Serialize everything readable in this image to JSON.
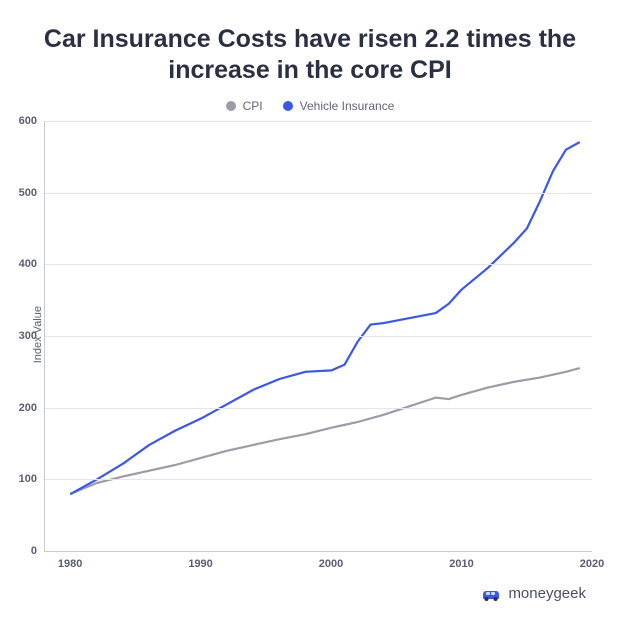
{
  "title": "Car Insurance Costs have risen 2.2 times the increase in the core CPI",
  "ylabel": "Index Value",
  "legend": {
    "a": {
      "label": "CPI",
      "color": "#9a9da7"
    },
    "b": {
      "label": "Vehicle Insurance",
      "color": "#3b57e8"
    }
  },
  "chart": {
    "type": "line",
    "background_color": "#ffffff",
    "grid_color": "#e4e6ec",
    "axis_color": "#c8cad2",
    "tick_color": "#5a5e70",
    "tick_fontsize": 11,
    "line_width": 2.2,
    "xlim": [
      1978,
      2020
    ],
    "ylim": [
      0,
      600
    ],
    "yticks": [
      0,
      100,
      200,
      300,
      400,
      500,
      600
    ],
    "xticks": [
      1980,
      1990,
      2000,
      2010,
      2020
    ],
    "series": {
      "cpi": {
        "color": "#9a9da7",
        "points": [
          [
            1980,
            80
          ],
          [
            1982,
            95
          ],
          [
            1984,
            104
          ],
          [
            1986,
            112
          ],
          [
            1988,
            120
          ],
          [
            1990,
            130
          ],
          [
            1992,
            140
          ],
          [
            1994,
            148
          ],
          [
            1996,
            156
          ],
          [
            1998,
            163
          ],
          [
            2000,
            172
          ],
          [
            2002,
            180
          ],
          [
            2004,
            190
          ],
          [
            2006,
            202
          ],
          [
            2008,
            214
          ],
          [
            2009,
            212
          ],
          [
            2010,
            218
          ],
          [
            2012,
            228
          ],
          [
            2014,
            236
          ],
          [
            2016,
            242
          ],
          [
            2018,
            250
          ],
          [
            2019,
            255
          ]
        ]
      },
      "vehicle": {
        "color": "#3b57e8",
        "points": [
          [
            1980,
            80
          ],
          [
            1982,
            100
          ],
          [
            1984,
            122
          ],
          [
            1986,
            148
          ],
          [
            1988,
            168
          ],
          [
            1990,
            185
          ],
          [
            1992,
            205
          ],
          [
            1994,
            225
          ],
          [
            1996,
            240
          ],
          [
            1998,
            250
          ],
          [
            2000,
            252
          ],
          [
            2001,
            260
          ],
          [
            2002,
            292
          ],
          [
            2003,
            316
          ],
          [
            2004,
            318
          ],
          [
            2006,
            325
          ],
          [
            2008,
            332
          ],
          [
            2009,
            345
          ],
          [
            2010,
            365
          ],
          [
            2012,
            395
          ],
          [
            2014,
            430
          ],
          [
            2015,
            450
          ],
          [
            2016,
            488
          ],
          [
            2017,
            530
          ],
          [
            2018,
            560
          ],
          [
            2019,
            570
          ]
        ]
      }
    }
  },
  "brand": {
    "name": "moneygeek",
    "accent": "#3b57e8",
    "text_color": "#4a4f66"
  }
}
